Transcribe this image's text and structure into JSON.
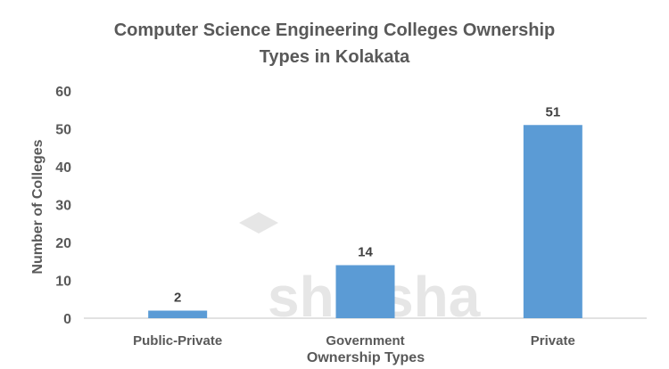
{
  "chart_data": {
    "type": "bar",
    "title": "Computer Science Engineering Colleges Ownership Types in Kolakata",
    "title_lines": [
      "Computer Science Engineering Colleges Ownership",
      "Types in Kolakata"
    ],
    "xlabel": "Ownership Types",
    "ylabel": "Number of Colleges",
    "categories": [
      "Public-Private",
      "Government",
      "Private"
    ],
    "values": [
      2,
      14,
      51
    ],
    "data_labels": [
      "2",
      "14",
      "51"
    ],
    "ylim": [
      0,
      60
    ],
    "yticks": [
      0,
      10,
      20,
      30,
      40,
      50,
      60
    ],
    "grid": false,
    "legend": "none",
    "colors": {
      "bar": "#5b9bd5",
      "text": "#595959",
      "axis": "#d9d9d9"
    }
  },
  "watermark": {
    "text": "shiksha"
  }
}
